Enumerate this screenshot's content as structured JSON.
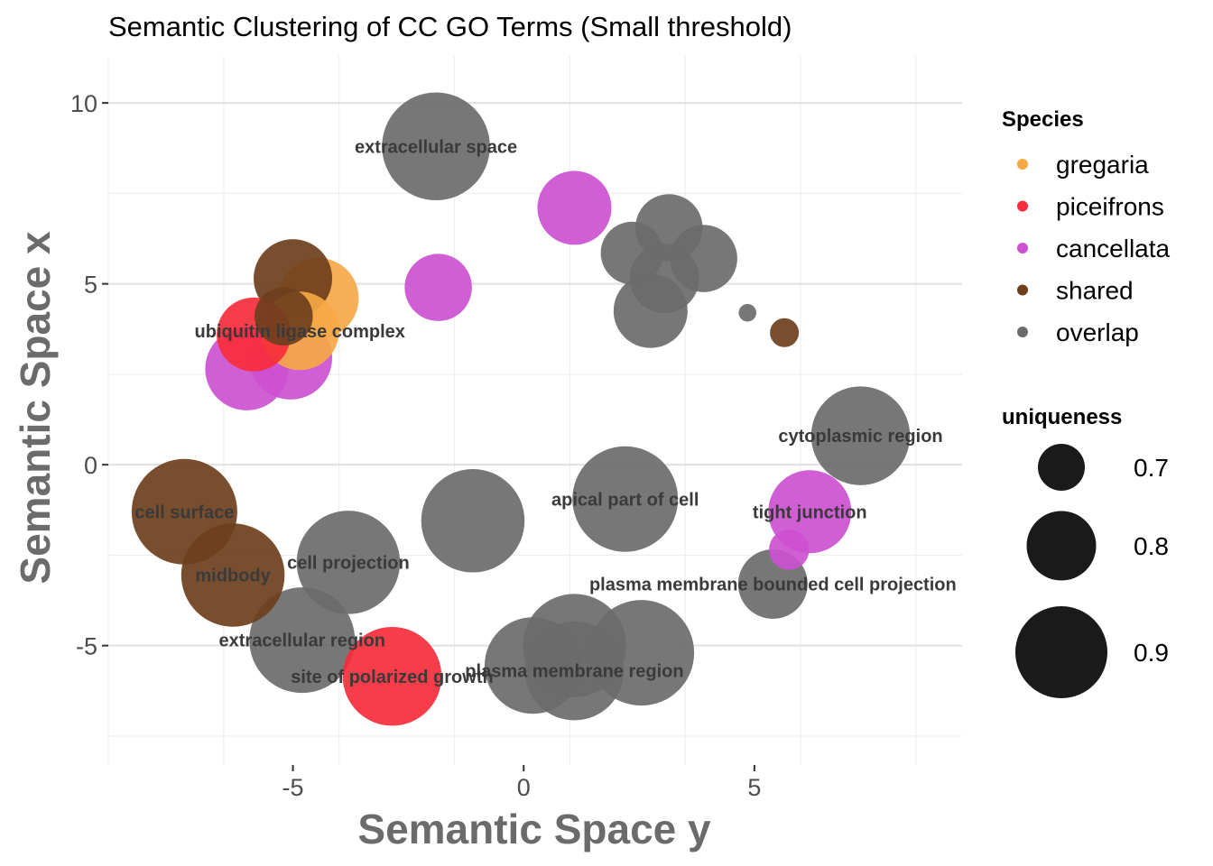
{
  "chart_data": {
    "type": "scatter",
    "title": "Semantic Clustering of CC GO Terms (Small threshold)",
    "xlabel": "Semantic Space y",
    "ylabel": "Semantic Space x",
    "xlim": [
      -9.0,
      9.5
    ],
    "ylim": [
      -8.3,
      11.3
    ],
    "xticks": [
      -5,
      0,
      5
    ],
    "yticks": [
      -5,
      0,
      5,
      10
    ],
    "ytick_labels": [
      "-5",
      "0",
      "5",
      "10"
    ],
    "xtick_labels": [
      "-5",
      "0",
      "5"
    ],
    "grid": true,
    "legend_position": "right",
    "colors": {
      "gregaria": "#f5a845",
      "piceifrons": "#f72d3b",
      "cancellata": "#cc50d0",
      "shared": "#6e3f1d",
      "overlap": "#6b6b6b"
    },
    "legend": {
      "species_title": "Species",
      "species": [
        "gregaria",
        "piceifrons",
        "cancellata",
        "shared",
        "overlap"
      ],
      "size_title": "uniqueness",
      "sizes": [
        {
          "label": "0.7",
          "value": 0.7
        },
        {
          "label": "0.8",
          "value": 0.8
        },
        {
          "label": "0.9",
          "value": 0.9
        }
      ]
    },
    "points": [
      {
        "x": -1.9,
        "y": 8.8,
        "uniqueness": 0.97,
        "species": "overlap",
        "label": "extracellular space"
      },
      {
        "x": 1.1,
        "y": 7.1,
        "uniqueness": 0.82,
        "species": "cancellata",
        "label": ""
      },
      {
        "x": 3.15,
        "y": 6.55,
        "uniqueness": 0.79,
        "species": "overlap",
        "label": ""
      },
      {
        "x": 2.35,
        "y": 5.85,
        "uniqueness": 0.77,
        "species": "overlap",
        "label": ""
      },
      {
        "x": 3.9,
        "y": 5.7,
        "uniqueness": 0.79,
        "species": "overlap",
        "label": ""
      },
      {
        "x": 3.05,
        "y": 5.15,
        "uniqueness": 0.8,
        "species": "overlap",
        "label": ""
      },
      {
        "x": 2.75,
        "y": 4.25,
        "uniqueness": 0.82,
        "species": "overlap",
        "label": ""
      },
      {
        "x": 4.85,
        "y": 4.2,
        "uniqueness": 0.57,
        "species": "overlap",
        "label": ""
      },
      {
        "x": 5.65,
        "y": 3.65,
        "uniqueness": 0.62,
        "species": "shared",
        "label": ""
      },
      {
        "x": -1.85,
        "y": 4.9,
        "uniqueness": 0.79,
        "species": "cancellata",
        "label": ""
      },
      {
        "x": -5.0,
        "y": 5.15,
        "uniqueness": 0.84,
        "species": "shared",
        "label": ""
      },
      {
        "x": -4.45,
        "y": 4.6,
        "uniqueness": 0.85,
        "species": "gregaria",
        "label": ""
      },
      {
        "x": -5.2,
        "y": 4.1,
        "uniqueness": 0.75,
        "species": "shared",
        "label": ""
      },
      {
        "x": -5.85,
        "y": 3.6,
        "uniqueness": 0.82,
        "species": "piceifrons",
        "label": ""
      },
      {
        "x": -4.85,
        "y": 3.7,
        "uniqueness": 0.84,
        "species": "gregaria",
        "label": "ubiquitin ligase complex"
      },
      {
        "x": -6.0,
        "y": 2.65,
        "uniqueness": 0.86,
        "species": "cancellata",
        "label": ""
      },
      {
        "x": -5.05,
        "y": 2.95,
        "uniqueness": 0.86,
        "species": "cancellata",
        "label": ""
      },
      {
        "x": 7.3,
        "y": 0.8,
        "uniqueness": 0.93,
        "species": "overlap",
        "label": "cytoplasmic region"
      },
      {
        "x": 2.2,
        "y": -0.95,
        "uniqueness": 0.96,
        "species": "overlap",
        "label": "apical part of cell"
      },
      {
        "x": -1.1,
        "y": -1.55,
        "uniqueness": 0.95,
        "species": "overlap",
        "label": ""
      },
      {
        "x": 6.2,
        "y": -1.3,
        "uniqueness": 0.86,
        "species": "cancellata",
        "label": "tight junction"
      },
      {
        "x": 5.75,
        "y": -2.35,
        "uniqueness": 0.67,
        "species": "cancellata",
        "label": ""
      },
      {
        "x": -7.35,
        "y": -1.3,
        "uniqueness": 0.96,
        "species": "shared",
        "label": "cell surface"
      },
      {
        "x": -6.3,
        "y": -3.05,
        "uniqueness": 0.95,
        "species": "shared",
        "label": "midbody"
      },
      {
        "x": -3.8,
        "y": -2.7,
        "uniqueness": 0.95,
        "species": "overlap",
        "label": "cell projection"
      },
      {
        "x": 5.4,
        "y": -3.3,
        "uniqueness": 0.8,
        "species": "overlap",
        "label": "plasma membrane bounded cell projection"
      },
      {
        "x": -4.8,
        "y": -4.85,
        "uniqueness": 0.96,
        "species": "overlap",
        "label": "extracellular region"
      },
      {
        "x": -2.85,
        "y": -5.85,
        "uniqueness": 0.93,
        "species": "piceifrons",
        "label": "site of polarized growth"
      },
      {
        "x": 1.1,
        "y": -5.0,
        "uniqueness": 0.95,
        "species": "overlap",
        "label": ""
      },
      {
        "x": 2.55,
        "y": -5.2,
        "uniqueness": 0.96,
        "species": "overlap",
        "label": ""
      },
      {
        "x": 0.2,
        "y": -5.55,
        "uniqueness": 0.92,
        "species": "overlap",
        "label": ""
      },
      {
        "x": 1.1,
        "y": -5.7,
        "uniqueness": 0.93,
        "species": "overlap",
        "label": "plasma membrane region"
      }
    ]
  }
}
